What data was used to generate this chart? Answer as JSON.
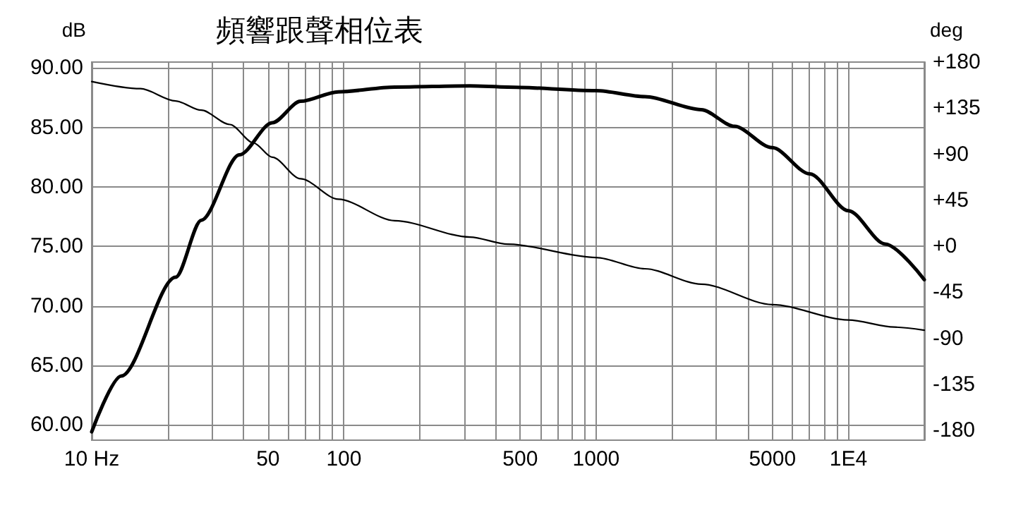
{
  "chart_data": {
    "type": "line",
    "title": "頻響跟聲相位表",
    "ylabel": "dB",
    "y2label": "deg",
    "xlim": [
      10,
      20000
    ],
    "log": "x",
    "grid": true,
    "marker": "none",
    "line_style": "solid",
    "xticks": [
      {
        "value": 10,
        "label": "10 Hz"
      },
      {
        "value": 20,
        "label": null
      },
      {
        "value": 30,
        "label": null
      },
      {
        "value": 40,
        "label": null
      },
      50,
      {
        "value": 60,
        "label": null
      },
      {
        "value": 70,
        "label": null
      },
      {
        "value": 80,
        "label": null
      },
      {
        "value": 90,
        "label": null
      },
      100,
      {
        "value": 200,
        "label": null
      },
      {
        "value": 300,
        "label": null
      },
      {
        "value": 400,
        "label": null
      },
      500,
      {
        "value": 600,
        "label": null
      },
      {
        "value": 700,
        "label": null
      },
      {
        "value": 800,
        "label": null
      },
      {
        "value": 900,
        "label": null
      },
      1000,
      {
        "value": 2000,
        "label": null
      },
      {
        "value": 3000,
        "label": null
      },
      {
        "value": 4000,
        "label": null
      },
      5000,
      {
        "value": 6000,
        "label": null
      },
      {
        "value": 7000,
        "label": null
      },
      {
        "value": 8000,
        "label": null
      },
      {
        "value": 9000,
        "label": null
      },
      {
        "value": 10000,
        "label": "1E4"
      }
    ],
    "ylim": [
      58.7,
      90.5
    ],
    "yticks": [
      {
        "value": 60,
        "label": "60.00"
      },
      {
        "value": 65,
        "label": "65.00"
      },
      {
        "value": 70,
        "label": "70.00"
      },
      {
        "value": 75,
        "label": "75.00"
      },
      {
        "value": 80,
        "label": "80.00"
      },
      {
        "value": 85,
        "label": "85.00"
      },
      {
        "value": 90,
        "label": "90.00"
      }
    ],
    "y2lim": [
      -189.5,
      180
    ],
    "y2ticks": [
      -180,
      -135,
      -90,
      -45,
      {
        "value": 0,
        "label": "+0"
      },
      {
        "value": 45,
        "label": "+45"
      },
      {
        "value": 90,
        "label": "+90"
      },
      {
        "value": 135,
        "label": "+135"
      },
      {
        "value": 180,
        "label": "+180"
      }
    ],
    "series": [
      {
        "color": "#000000",
        "x": [
          10,
          13.1,
          21.5,
          27.2,
          38.5,
          52,
          67.3,
          95,
          159,
          316,
          447,
          1000,
          1560,
          2610,
          3530,
          4990,
          7030,
          10000,
          14000,
          20000
        ],
        "values": [
          59.4,
          64.1,
          72.4,
          77.2,
          82.7,
          85.4,
          87.2,
          88.0,
          88.4,
          88.5,
          88.4,
          88.1,
          87.6,
          86.5,
          85.1,
          83.3,
          81.1,
          78.0,
          75.2,
          72.2
        ]
      },
      {
        "color": "#000000",
        "axis": "y2",
        "x": [
          10,
          15.6,
          21.5,
          27.2,
          35.3,
          43.8,
          52,
          67.3,
          95,
          159,
          316,
          447,
          1000,
          1560,
          2610,
          4990,
          10000,
          15200,
          20000
        ],
        "values": [
          161,
          154,
          142,
          133,
          119,
          101,
          87,
          66,
          46,
          25,
          9,
          2,
          -11,
          -22,
          -37,
          -57,
          -72,
          -79,
          -82
        ]
      }
    ]
  }
}
